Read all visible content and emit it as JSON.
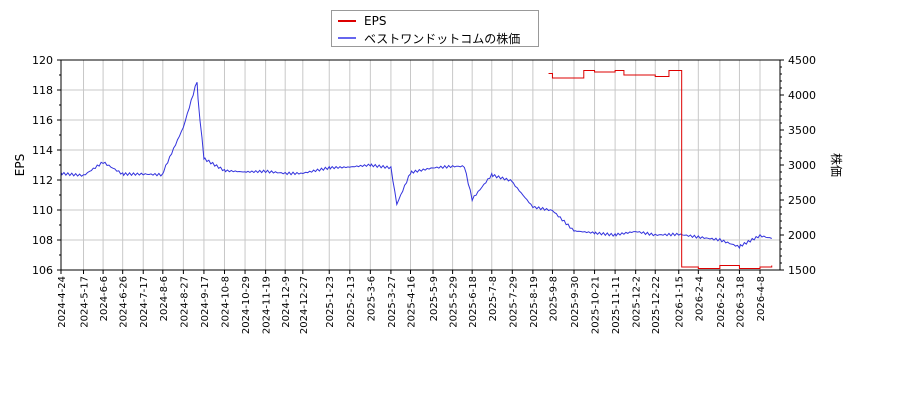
{
  "chart_data": {
    "type": "line",
    "title": "",
    "legend": {
      "position": "top-center",
      "entries": [
        {
          "name": "EPS",
          "color": "#dd0000"
        },
        {
          "name": "ベストワンドットコムの株価",
          "color": "#3333dd"
        }
      ]
    },
    "y_left": {
      "label": "EPS",
      "range": [
        106,
        120
      ],
      "ticks": [
        "106",
        "108",
        "110",
        "112",
        "114",
        "116",
        "118",
        "120"
      ]
    },
    "y_right": {
      "label": "株価",
      "range": [
        1500,
        4500
      ],
      "ticks": [
        "1500",
        "2000",
        "2500",
        "3000",
        "3500",
        "4000",
        "4500"
      ]
    },
    "x_ticks": [
      "2024-4-24",
      "2024-5-17",
      "2024-6-6",
      "2024-6-26",
      "2024-7-17",
      "2024-8-6",
      "2024-8-27",
      "2024-9-17",
      "2024-10-8",
      "2024-10-29",
      "2024-11-19",
      "2024-12-9",
      "2024-12-27",
      "2025-1-23",
      "2025-2-13",
      "2025-3-6",
      "2025-3-27",
      "2025-4-16",
      "2025-5-9",
      "2025-5-29",
      "2025-6-18",
      "2025-7-8",
      "2025-7-29",
      "2025-8-19",
      "2025-9-8",
      "2025-9-30",
      "2025-10-21",
      "2025-11-11",
      "2025-12-2",
      "2025-12-22",
      "2026-1-15",
      "2026-2-4",
      "2026-2-26",
      "2026-3-18",
      "2026-4-8"
    ],
    "grid": true,
    "series": [
      {
        "name": "ベストワンドットコムの株価",
        "axis": "right",
        "color": "#3333dd",
        "x": [
          "2024-4-24",
          "2024-5-17",
          "2024-6-6",
          "2024-6-26",
          "2024-7-17",
          "2024-8-6",
          "2024-8-27",
          "2024-9-10",
          "2024-9-17",
          "2024-10-8",
          "2024-10-29",
          "2024-11-19",
          "2024-12-9",
          "2024-12-27",
          "2025-1-23",
          "2025-2-13",
          "2025-3-6",
          "2025-3-27",
          "2025-4-2",
          "2025-4-16",
          "2025-5-9",
          "2025-5-29",
          "2025-6-10",
          "2025-6-18",
          "2025-7-8",
          "2025-7-29",
          "2025-8-19",
          "2025-9-8",
          "2025-9-30",
          "2025-10-21",
          "2025-11-11",
          "2025-12-2",
          "2025-12-22",
          "2026-1-15",
          "2026-2-4",
          "2026-2-26",
          "2026-3-18",
          "2026-4-8",
          "2026-4-20"
        ],
        "values": [
          2880,
          2850,
          3040,
          2870,
          2870,
          2860,
          3540,
          4200,
          3100,
          2920,
          2900,
          2910,
          2880,
          2880,
          2960,
          2970,
          3000,
          2960,
          2440,
          2890,
          2960,
          2980,
          2980,
          2510,
          2860,
          2770,
          2400,
          2350,
          2060,
          2030,
          2000,
          2050,
          2000,
          2010,
          1970,
          1930,
          1830,
          1990,
          1950
        ]
      },
      {
        "name": "EPS",
        "axis": "left",
        "color": "#dd0000",
        "x": [
          "2025-9-4",
          "2025-9-8",
          "2025-9-30",
          "2025-10-10",
          "2025-10-21",
          "2025-11-11",
          "2025-11-20",
          "2025-12-2",
          "2025-12-22",
          "2026-1-5",
          "2026-1-15",
          "2026-1-18",
          "2026-2-4",
          "2026-2-26",
          "2026-3-18",
          "2026-4-8",
          "2026-4-20"
        ],
        "values": [
          119.1,
          118.8,
          118.8,
          119.3,
          119.2,
          119.3,
          119.0,
          119.0,
          118.9,
          119.3,
          119.3,
          106.2,
          106.1,
          106.3,
          106.1,
          106.2,
          106.3
        ]
      }
    ]
  }
}
